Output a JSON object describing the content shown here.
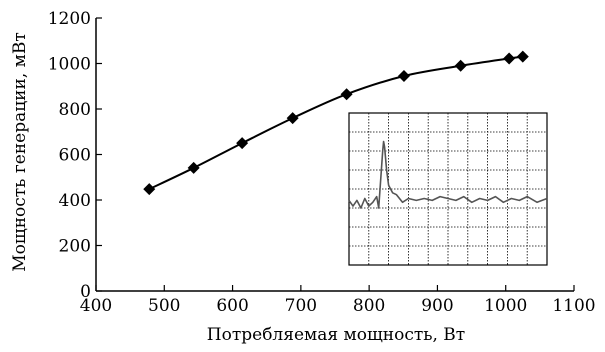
{
  "chart_data": {
    "type": "line",
    "title": "",
    "xlabel": "Потребляемая мощность, Вт",
    "ylabel": "Мощность генерации, мВт",
    "xlim": [
      400,
      1100
    ],
    "ylim": [
      0,
      1200
    ],
    "x_ticks": [
      400,
      500,
      600,
      700,
      800,
      900,
      1000,
      1100
    ],
    "y_ticks": [
      0,
      200,
      400,
      600,
      800,
      1000,
      1200
    ],
    "grid": false,
    "marker": "diamond",
    "series": [
      {
        "x": [
          478,
          543,
          614,
          688,
          767,
          851,
          934,
          1005,
          1025
        ],
        "y": [
          448,
          541,
          650,
          760,
          865,
          945,
          990,
          1022,
          1030
        ]
      }
    ],
    "inset": {
      "type": "line",
      "grid": true,
      "grid_columns": 10,
      "grid_rows": 8,
      "series_color": "#555555",
      "x": [
        0,
        2,
        4,
        6,
        8,
        10,
        12,
        14,
        15,
        16,
        17,
        17.5,
        18,
        19,
        20,
        21,
        22,
        24,
        27,
        30,
        34,
        38,
        42,
        46,
        50,
        54,
        58,
        62,
        66,
        70,
        74,
        78,
        82,
        86,
        90,
        95,
        100
      ],
      "y": [
        3.4,
        3.1,
        3.4,
        3.0,
        3.5,
        3.1,
        3.3,
        3.6,
        3.0,
        4.5,
        6.0,
        6.5,
        6.2,
        5.0,
        4.2,
        4.0,
        3.8,
        3.7,
        3.3,
        3.5,
        3.4,
        3.5,
        3.4,
        3.6,
        3.5,
        3.4,
        3.6,
        3.3,
        3.5,
        3.4,
        3.6,
        3.3,
        3.5,
        3.4,
        3.6,
        3.3,
        3.5
      ]
    }
  }
}
